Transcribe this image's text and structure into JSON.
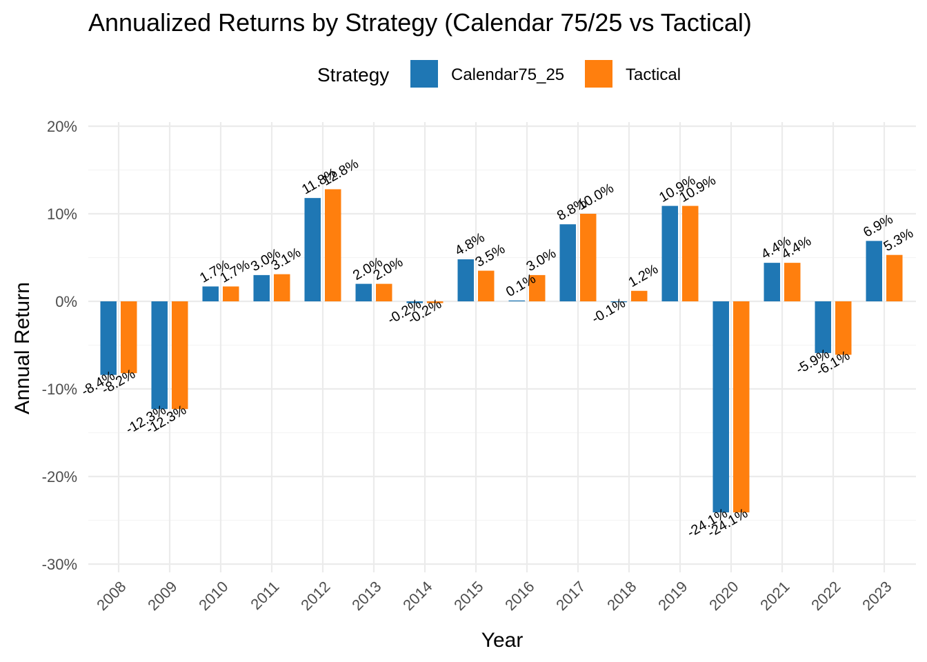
{
  "chart_data": {
    "type": "bar",
    "title": "Annualized Returns by Strategy (Calendar 75/25 vs Tactical)",
    "xlabel": "Year",
    "ylabel": "Annual Return",
    "legend_title": "Strategy",
    "legend_position": "top",
    "grid": true,
    "ylim": [
      -30,
      20
    ],
    "yticks": [
      "-30%",
      "-20%",
      "-10%",
      "0%",
      "10%",
      "20%"
    ],
    "ytick_values": [
      -30,
      -20,
      -10,
      0,
      10,
      20
    ],
    "categories": [
      "2008",
      "2009",
      "2010",
      "2011",
      "2012",
      "2013",
      "2014",
      "2015",
      "2016",
      "2017",
      "2018",
      "2019",
      "2020",
      "2021",
      "2022",
      "2023"
    ],
    "series": [
      {
        "name": "Calendar75_25",
        "color": "#1f77b4",
        "values": [
          -8.4,
          -12.3,
          1.7,
          3.0,
          11.8,
          2.0,
          -0.2,
          4.8,
          0.1,
          8.8,
          -0.1,
          10.9,
          -24.1,
          4.4,
          -5.9,
          6.9
        ],
        "labels": [
          "-8.4%",
          "-12.3%",
          "1.7%",
          "3.0%",
          "11.8%",
          "2.0%",
          "-0.2%",
          "4.8%",
          "0.1%",
          "8.8%",
          "-0.1%",
          "10.9%",
          "-24.1%",
          "4.4%",
          "-5.9%",
          "6.9%"
        ]
      },
      {
        "name": "Tactical",
        "color": "#ff7f0e",
        "values": [
          -8.2,
          -12.3,
          1.7,
          3.1,
          12.8,
          2.0,
          -0.2,
          3.5,
          3.0,
          10.0,
          1.2,
          10.9,
          -24.1,
          4.4,
          -6.1,
          5.3
        ],
        "labels": [
          "-8.2%",
          "-12.3%",
          "1.7%",
          "3.1%",
          "12.8%",
          "2.0%",
          "-0.2%",
          "3.5%",
          "3.0%",
          "10.0%",
          "1.2%",
          "10.9%",
          "-24.1%",
          "4.4%",
          "-6.1%",
          "5.3%"
        ]
      }
    ]
  }
}
